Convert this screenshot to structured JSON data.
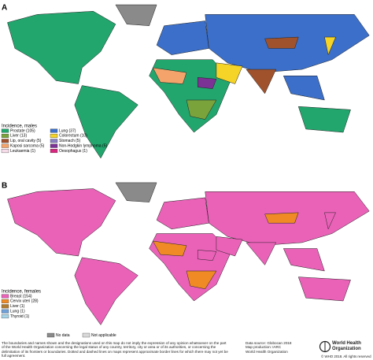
{
  "panels": [
    {
      "label": "A",
      "legend": {
        "title": "Incidence, males",
        "items": [
          {
            "label": "Prostate (105)",
            "color": "#22a66e"
          },
          {
            "label": "Liver (13)",
            "color": "#7aa33c"
          },
          {
            "label": "Lip, oral cavity (5)",
            "color": "#a0522d"
          },
          {
            "label": "Kaposi sarcoma (5)",
            "color": "#f4a46a"
          },
          {
            "label": "Leukaemia (1)",
            "color": "#f7dcea"
          },
          {
            "label": "Lung (37)",
            "color": "#3b6fc9"
          },
          {
            "label": "Colorectum (10)",
            "color": "#f5d327"
          },
          {
            "label": "Stomach (5)",
            "color": "#8a7fc0"
          },
          {
            "label": "Non-Hodgkin lymphoma (5)",
            "color": "#7b3294"
          },
          {
            "label": "Oesophagus (1)",
            "color": "#d7267f"
          }
        ]
      }
    },
    {
      "label": "B",
      "legend": {
        "title": "Incidence, females",
        "items": [
          {
            "label": "Breast (154)",
            "color": "#ea62b8"
          },
          {
            "label": "Cervix uteri (28)",
            "color": "#f08a24"
          },
          {
            "label": "Liver (1)",
            "color": "#b07a30"
          },
          {
            "label": "Lung (1)",
            "color": "#6fa0d8"
          },
          {
            "label": "Thyroid (1)",
            "color": "#a6d4e8"
          }
        ]
      }
    }
  ],
  "status": [
    {
      "label": "No data",
      "color": "#8a8a8a"
    },
    {
      "label": "Not applicable",
      "color": "#d9d9d9"
    }
  ],
  "footer": {
    "disclaimer": "The boundaries and names shown and the designations used on this map do not imply the expression of any opinion whatsoever on the part of the World Health Organization concerning the legal status of any country, territory, city or area or of its authorities, or concerning the delimitation of its frontiers or boundaries. Dotted and dashed lines on maps represent approximate border lines for which there may not yet be full agreement.",
    "credits": [
      "Data source: Globocan 2018",
      "Map production: IARC",
      "World Health Organization"
    ],
    "logo": "World Health Organization",
    "copyright": "© WHO 2018. All rights reserved"
  }
}
